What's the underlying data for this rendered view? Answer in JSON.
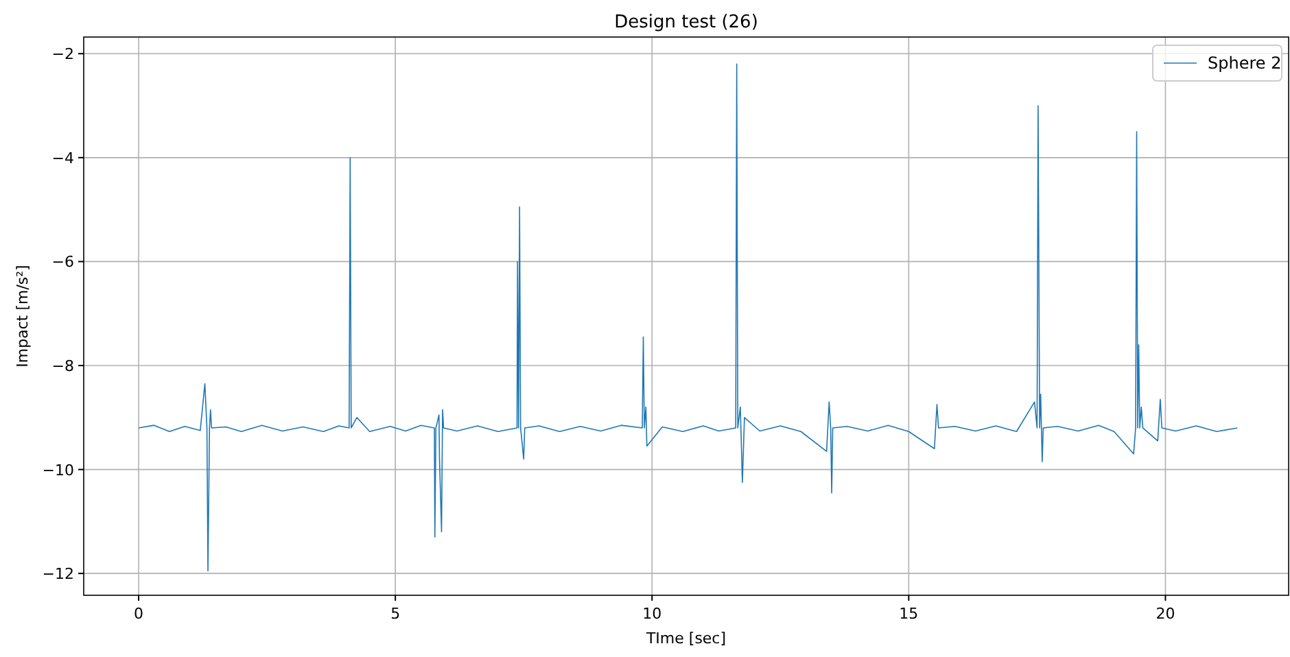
{
  "chart_data": {
    "type": "line",
    "title": "Design test (26)",
    "xlabel": "TIme [sec]",
    "ylabel": "Impact [m/s²]",
    "xlim": [
      -1.07,
      22.4
    ],
    "ylim": [
      -12.42,
      -1.68
    ],
    "xticks": [
      0,
      5,
      10,
      15,
      20
    ],
    "yticks": [
      -12,
      -10,
      -8,
      -6,
      -4,
      -2
    ],
    "grid": true,
    "legend": "top right",
    "series": [
      {
        "name": "Sphere 2",
        "color": "#1f77b4",
        "x": [
          0,
          0.3,
          0.6,
          0.9,
          1.2,
          1.29,
          1.33,
          1.35,
          1.38,
          1.4,
          1.42,
          1.7,
          2.0,
          2.4,
          2.8,
          3.2,
          3.6,
          3.9,
          4.1,
          4.12,
          4.14,
          4.25,
          4.5,
          4.9,
          5.2,
          5.5,
          5.76,
          5.77,
          5.79,
          5.85,
          5.86,
          5.9,
          5.92,
          5.94,
          6.2,
          6.6,
          7.0,
          7.37,
          7.38,
          7.4,
          7.42,
          7.44,
          7.5,
          7.52,
          7.8,
          8.2,
          8.6,
          9.0,
          9.4,
          9.81,
          9.83,
          9.85,
          9.88,
          9.9,
          10.2,
          10.6,
          11.0,
          11.3,
          11.63,
          11.65,
          11.67,
          11.72,
          11.76,
          11.8,
          12.1,
          12.5,
          12.9,
          13.4,
          13.45,
          13.48,
          13.5,
          13.52,
          13.8,
          14.2,
          14.6,
          15.0,
          15.5,
          15.55,
          15.58,
          15.9,
          16.3,
          16.7,
          17.1,
          17.45,
          17.5,
          17.52,
          17.55,
          17.57,
          17.6,
          17.62,
          17.9,
          18.3,
          18.7,
          19.0,
          19.38,
          19.42,
          19.44,
          19.46,
          19.48,
          19.5,
          19.53,
          19.56,
          19.85,
          19.9,
          19.93,
          20.2,
          20.6,
          21.0,
          21.4
        ],
        "values": [
          -9.2,
          -9.15,
          -9.27,
          -9.17,
          -9.25,
          -8.35,
          -9.2,
          -11.95,
          -9.2,
          -8.85,
          -9.2,
          -9.18,
          -9.27,
          -9.15,
          -9.26,
          -9.18,
          -9.27,
          -9.16,
          -9.2,
          -4.0,
          -9.2,
          -9.0,
          -9.27,
          -9.17,
          -9.26,
          -9.15,
          -9.2,
          -11.3,
          -9.2,
          -8.95,
          -9.8,
          -11.2,
          -8.85,
          -9.2,
          -9.26,
          -9.16,
          -9.27,
          -9.2,
          -6.0,
          -9.2,
          -4.95,
          -9.2,
          -9.8,
          -9.2,
          -9.16,
          -9.27,
          -9.17,
          -9.26,
          -9.15,
          -9.2,
          -7.45,
          -9.2,
          -8.8,
          -9.55,
          -9.18,
          -9.27,
          -9.16,
          -9.26,
          -9.2,
          -2.2,
          -9.2,
          -8.8,
          -10.25,
          -9.0,
          -9.26,
          -9.16,
          -9.27,
          -9.65,
          -8.7,
          -9.2,
          -10.45,
          -9.2,
          -9.17,
          -9.26,
          -9.15,
          -9.27,
          -9.6,
          -8.75,
          -9.2,
          -9.17,
          -9.26,
          -9.16,
          -9.27,
          -8.7,
          -9.2,
          -3.0,
          -9.2,
          -8.55,
          -9.85,
          -9.2,
          -9.17,
          -9.26,
          -9.15,
          -9.27,
          -9.7,
          -9.2,
          -3.5,
          -9.2,
          -7.6,
          -9.2,
          -8.8,
          -9.2,
          -9.45,
          -8.65,
          -9.2,
          -9.26,
          -9.16,
          -9.27,
          -9.2
        ]
      }
    ]
  }
}
